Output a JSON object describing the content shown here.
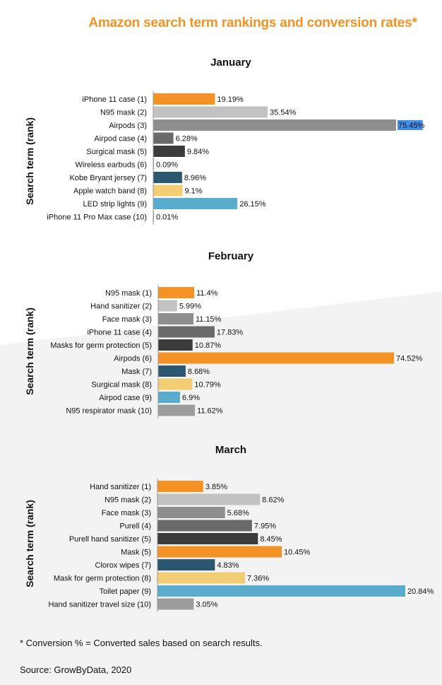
{
  "title": "Amazon search term rankings and conversion rates*",
  "footnote": "* Conversion % = Converted sales based on search results.",
  "source": "Source: GrowByData, 2020",
  "colors": {
    "orange": "#f39325",
    "light_gray": "#c2c2c2",
    "mid_gray": "#8e8e8e",
    "dark_gray": "#6a6a6a",
    "charcoal": "#3b3b3b",
    "navy": "#2b5870",
    "yellow": "#f3cd72",
    "sky": "#5aaccd",
    "gray": "#9c9c9c",
    "highlight": "#3f8fe8",
    "axis": "#9a9a9a",
    "text": "#111111"
  },
  "chart_data": [
    {
      "type": "bar",
      "orientation": "horizontal",
      "title": "January",
      "ylabel": "Search term (rank)",
      "xlim": [
        0,
        75.45
      ],
      "categories": [
        "iPhone 11 case (1)",
        "N95 mask (2)",
        "Airpods (3)",
        "Airpod case (4)",
        "Surgical mask (5)",
        "Wireless earbuds (6)",
        "Kobe Bryant jersey (7)",
        "Apple watch band (8)",
        "LED strip lights (9)",
        "iPhone 11 Pro Max case (10)"
      ],
      "values": [
        19.19,
        35.54,
        75.45,
        6.28,
        9.84,
        0.09,
        8.96,
        9.1,
        26.15,
        0.01
      ],
      "labels": [
        "19.19%",
        "35.54%",
        "75.45%",
        "6.28%",
        "9.84%",
        "0.09%",
        "8.96%",
        "9.1%",
        "26.15%",
        "0.01%"
      ],
      "bar_colors": [
        "orange",
        "light_gray",
        "mid_gray",
        "dark_gray",
        "charcoal",
        "gray",
        "navy",
        "yellow",
        "sky",
        "gray"
      ],
      "highlighted_label": 2
    },
    {
      "type": "bar",
      "orientation": "horizontal",
      "title": "February",
      "ylabel": "Search term (rank)",
      "xlim": [
        0,
        74.52
      ],
      "categories": [
        "N95 mask (1)",
        "Hand sanitizer (2)",
        "Face mask (3)",
        "iPhone 11 case (4)",
        "Masks for germ protection (5)",
        "Airpods (6)",
        "Mask (7)",
        "Surgical mask (8)",
        "Airpod case (9)",
        "N95 respirator mask (10)"
      ],
      "values": [
        11.4,
        5.99,
        11.15,
        17.83,
        10.87,
        74.52,
        8.68,
        10.79,
        6.9,
        11.62
      ],
      "labels": [
        "11.4%",
        "5.99%",
        "11.15%",
        "17.83%",
        "10.87%",
        "74.52%",
        "8.68%",
        "10.79%",
        "6.9%",
        "11.62%"
      ],
      "bar_colors": [
        "orange",
        "light_gray",
        "mid_gray",
        "dark_gray",
        "charcoal",
        "orange",
        "navy",
        "yellow",
        "sky",
        "gray"
      ]
    },
    {
      "type": "bar",
      "orientation": "horizontal",
      "title": "March",
      "ylabel": "Search term (rank)",
      "xlim": [
        0,
        20.84
      ],
      "categories": [
        "Hand sanitizer (1)",
        "N95 mask (2)",
        "Face mask (3)",
        "Purell (4)",
        "Purell hand sanitizer (5)",
        "Mask (5)",
        "Clorox wipes (7)",
        "Mask for germ protection (8)",
        "Toilet paper (9)",
        "Hand sanitizer travel size (10)"
      ],
      "values": [
        3.85,
        8.62,
        5.68,
        7.95,
        8.45,
        10.45,
        4.83,
        7.36,
        20.84,
        3.05
      ],
      "labels": [
        "3.85%",
        "8.62%",
        "5.68%",
        "7.95%",
        "8.45%",
        "10.45%",
        "4.83%",
        "7.36%",
        "20.84%",
        "3.05%"
      ],
      "bar_colors": [
        "orange",
        "light_gray",
        "mid_gray",
        "dark_gray",
        "charcoal",
        "orange",
        "navy",
        "yellow",
        "sky",
        "gray"
      ]
    }
  ]
}
